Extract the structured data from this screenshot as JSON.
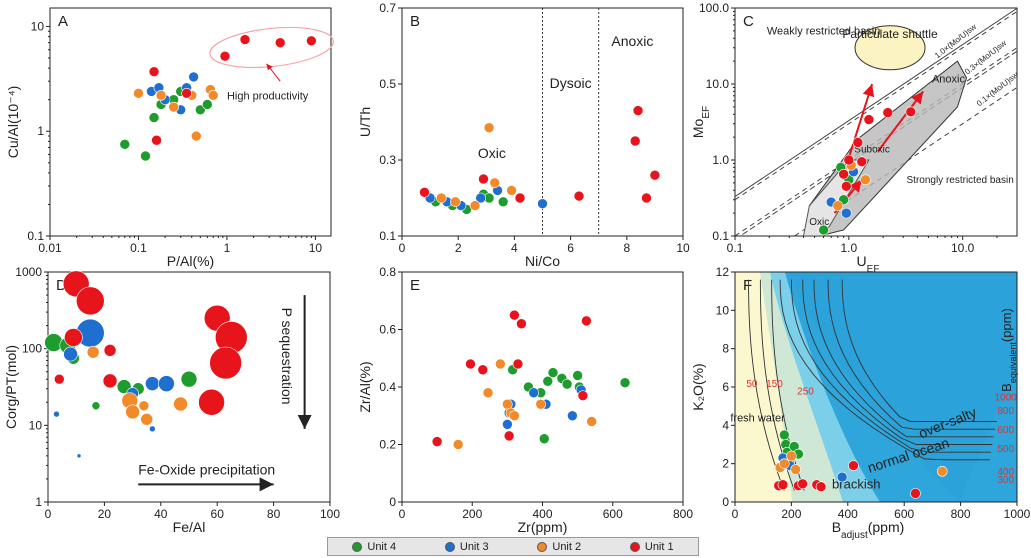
{
  "colors": {
    "unit4": "#1e9c2e",
    "unit3": "#1f6fd1",
    "unit2": "#f28a2a",
    "unit1": "#e8141c"
  },
  "legend": [
    {
      "key": "unit4",
      "label": "Unit 4"
    },
    {
      "key": "unit3",
      "label": "Unit 3"
    },
    {
      "key": "unit2",
      "label": "Unit 2"
    },
    {
      "key": "unit1",
      "label": "Unit 1"
    }
  ],
  "chart_data": [
    {
      "id": "A",
      "type": "scatter",
      "panel_label": "A",
      "xscale": "log",
      "yscale": "log",
      "xlabel": "P/Al(%)",
      "ylabel": "Cu/Al(10⁻⁴)",
      "xlim": [
        0.01,
        15
      ],
      "ylim": [
        0.1,
        15
      ],
      "xticks": [
        0.01,
        0.1,
        1,
        10
      ],
      "xtick_labels": [
        "0.01",
        "0.1",
        "1",
        "10"
      ],
      "yticks": [
        0.1,
        1,
        10
      ],
      "ytick_labels": [
        "0.1",
        "1",
        "10"
      ],
      "annotations": [
        "High productivity"
      ],
      "points": [
        {
          "x": 0.07,
          "y": 0.75,
          "unit": "unit4"
        },
        {
          "x": 0.12,
          "y": 0.58,
          "unit": "unit4"
        },
        {
          "x": 0.15,
          "y": 1.35,
          "unit": "unit4"
        },
        {
          "x": 0.18,
          "y": 1.8,
          "unit": "unit4"
        },
        {
          "x": 0.25,
          "y": 2.0,
          "unit": "unit4"
        },
        {
          "x": 0.3,
          "y": 2.4,
          "unit": "unit4"
        },
        {
          "x": 0.5,
          "y": 1.6,
          "unit": "unit4"
        },
        {
          "x": 0.6,
          "y": 1.8,
          "unit": "unit4"
        },
        {
          "x": 0.14,
          "y": 2.4,
          "unit": "unit3"
        },
        {
          "x": 0.2,
          "y": 2.0,
          "unit": "unit3"
        },
        {
          "x": 0.3,
          "y": 1.6,
          "unit": "unit3"
        },
        {
          "x": 0.35,
          "y": 2.6,
          "unit": "unit3"
        },
        {
          "x": 0.42,
          "y": 3.3,
          "unit": "unit3"
        },
        {
          "x": 0.17,
          "y": 2.6,
          "unit": "unit3"
        },
        {
          "x": 0.1,
          "y": 2.3,
          "unit": "unit2"
        },
        {
          "x": 0.18,
          "y": 2.2,
          "unit": "unit2"
        },
        {
          "x": 0.25,
          "y": 1.7,
          "unit": "unit2"
        },
        {
          "x": 0.4,
          "y": 2.2,
          "unit": "unit2"
        },
        {
          "x": 0.65,
          "y": 2.5,
          "unit": "unit2"
        },
        {
          "x": 0.7,
          "y": 2.2,
          "unit": "unit2"
        },
        {
          "x": 0.45,
          "y": 0.9,
          "unit": "unit2"
        },
        {
          "x": 0.15,
          "y": 3.7,
          "unit": "unit1"
        },
        {
          "x": 0.16,
          "y": 0.82,
          "unit": "unit1"
        },
        {
          "x": 0.35,
          "y": 2.3,
          "unit": "unit1"
        },
        {
          "x": 0.95,
          "y": 5.2,
          "unit": "unit1"
        },
        {
          "x": 1.6,
          "y": 7.5,
          "unit": "unit1"
        },
        {
          "x": 4.0,
          "y": 7.0,
          "unit": "unit1"
        },
        {
          "x": 9.0,
          "y": 7.3,
          "unit": "unit1"
        }
      ]
    },
    {
      "id": "B",
      "type": "scatter",
      "panel_label": "B",
      "xlabel": "Ni/Co",
      "ylabel": "U/Th",
      "xlim": [
        0,
        10
      ],
      "ylim": [
        0.1,
        0.7
      ],
      "xticks": [
        0,
        2,
        4,
        6,
        8,
        10
      ],
      "xtick_labels": [
        "0",
        "2",
        "4",
        "6",
        "8",
        "10"
      ],
      "yticks": [
        0.1,
        0.3,
        0.5,
        0.7
      ],
      "ytick_labels": [
        "0.1",
        "0.3",
        "0.5",
        "0.7"
      ],
      "vlines": [
        5,
        7
      ],
      "zones": [
        "Oxic",
        "Dysoic",
        "Anoxic"
      ],
      "points": [
        {
          "x": 1.2,
          "y": 0.19,
          "unit": "unit4"
        },
        {
          "x": 1.8,
          "y": 0.18,
          "unit": "unit4"
        },
        {
          "x": 2.3,
          "y": 0.17,
          "unit": "unit4"
        },
        {
          "x": 2.9,
          "y": 0.21,
          "unit": "unit4"
        },
        {
          "x": 3.1,
          "y": 0.2,
          "unit": "unit4"
        },
        {
          "x": 3.6,
          "y": 0.19,
          "unit": "unit4"
        },
        {
          "x": 1.0,
          "y": 0.2,
          "unit": "unit3"
        },
        {
          "x": 1.6,
          "y": 0.19,
          "unit": "unit3"
        },
        {
          "x": 2.1,
          "y": 0.18,
          "unit": "unit3"
        },
        {
          "x": 2.8,
          "y": 0.2,
          "unit": "unit3"
        },
        {
          "x": 3.4,
          "y": 0.22,
          "unit": "unit3"
        },
        {
          "x": 5.0,
          "y": 0.185,
          "unit": "unit3"
        },
        {
          "x": 1.4,
          "y": 0.2,
          "unit": "unit2"
        },
        {
          "x": 1.9,
          "y": 0.19,
          "unit": "unit2"
        },
        {
          "x": 2.6,
          "y": 0.18,
          "unit": "unit2"
        },
        {
          "x": 3.1,
          "y": 0.385,
          "unit": "unit2"
        },
        {
          "x": 3.3,
          "y": 0.24,
          "unit": "unit2"
        },
        {
          "x": 3.9,
          "y": 0.22,
          "unit": "unit2"
        },
        {
          "x": 0.8,
          "y": 0.215,
          "unit": "unit1"
        },
        {
          "x": 2.9,
          "y": 0.25,
          "unit": "unit1"
        },
        {
          "x": 4.2,
          "y": 0.2,
          "unit": "unit1"
        },
        {
          "x": 6.3,
          "y": 0.205,
          "unit": "unit1"
        },
        {
          "x": 8.3,
          "y": 0.35,
          "unit": "unit1"
        },
        {
          "x": 8.4,
          "y": 0.43,
          "unit": "unit1"
        },
        {
          "x": 8.7,
          "y": 0.2,
          "unit": "unit1"
        },
        {
          "x": 9.0,
          "y": 0.26,
          "unit": "unit1"
        }
      ]
    },
    {
      "id": "C",
      "type": "scatter",
      "panel_label": "C",
      "xscale": "log",
      "yscale": "log",
      "xlabel": "U",
      "xlabel_sub": "EF",
      "ylabel": "Mo",
      "ylabel_sub": "EF",
      "xlim": [
        0.1,
        30
      ],
      "ylim": [
        0.1,
        100
      ],
      "xticks": [
        0.1,
        1,
        10
      ],
      "xtick_labels": [
        "0.1",
        "1.0",
        "10.0"
      ],
      "yticks": [
        0.1,
        1,
        10,
        100
      ],
      "ytick_labels": [
        "0.1",
        "1.0",
        "10.0",
        "100.0"
      ],
      "ref_lines": [
        {
          "factor": 3,
          "label": "1.0×(Mo/U)sw"
        },
        {
          "factor": 1,
          "label": "0.3×(Mo/U)sw"
        },
        {
          "factor": 0.3,
          "label": "0.1×(Mo/U)sw"
        }
      ],
      "region_labels": [
        "Weakly restricted basin",
        "Particulate shuttle",
        "Anoxic",
        "Suboxic",
        "Oxic",
        "Strongly restricted basin"
      ],
      "points": [
        {
          "x": 0.6,
          "y": 0.12,
          "unit": "unit4"
        },
        {
          "x": 0.85,
          "y": 0.8,
          "unit": "unit4"
        },
        {
          "x": 0.9,
          "y": 0.3,
          "unit": "unit4"
        },
        {
          "x": 1.0,
          "y": 0.55,
          "unit": "unit4"
        },
        {
          "x": 0.7,
          "y": 0.28,
          "unit": "unit3"
        },
        {
          "x": 0.95,
          "y": 0.2,
          "unit": "unit3"
        },
        {
          "x": 1.1,
          "y": 0.7,
          "unit": "unit3"
        },
        {
          "x": 0.8,
          "y": 0.25,
          "unit": "unit2"
        },
        {
          "x": 1.05,
          "y": 0.85,
          "unit": "unit2"
        },
        {
          "x": 1.4,
          "y": 0.55,
          "unit": "unit2"
        },
        {
          "x": 0.9,
          "y": 0.65,
          "unit": "unit1"
        },
        {
          "x": 1.0,
          "y": 1.0,
          "unit": "unit1"
        },
        {
          "x": 1.3,
          "y": 0.95,
          "unit": "unit1"
        },
        {
          "x": 1.5,
          "y": 3.4,
          "unit": "unit1"
        },
        {
          "x": 2.2,
          "y": 4.2,
          "unit": "unit1"
        },
        {
          "x": 3.5,
          "y": 4.3,
          "unit": "unit1"
        },
        {
          "x": 0.95,
          "y": 0.45,
          "unit": "unit1"
        },
        {
          "x": 1.2,
          "y": 1.7,
          "unit": "unit1"
        }
      ]
    },
    {
      "id": "D",
      "type": "scatter",
      "panel_label": "D",
      "yscale": "log",
      "xlabel": "Fe/Al",
      "ylabel": "Corg/PT(mol)",
      "xlim": [
        0,
        100
      ],
      "ylim": [
        1,
        1000
      ],
      "xticks": [
        0,
        20,
        40,
        60,
        80,
        100
      ],
      "xtick_labels": [
        "0",
        "20",
        "40",
        "60",
        "80",
        "100"
      ],
      "yticks": [
        1,
        10,
        100,
        1000
      ],
      "ytick_labels": [
        "1",
        "10",
        "100",
        "1000"
      ],
      "annotations": [
        "P sequestration",
        "Fe-Oxide precipitation"
      ],
      "points": [
        {
          "x": 2,
          "y": 120,
          "unit": "unit4",
          "s": 9
        },
        {
          "x": 7,
          "y": 110,
          "unit": "unit4",
          "s": 8
        },
        {
          "x": 9,
          "y": 75,
          "unit": "unit4",
          "s": 6
        },
        {
          "x": 17,
          "y": 18,
          "unit": "unit4",
          "s": 4
        },
        {
          "x": 27,
          "y": 32,
          "unit": "unit4",
          "s": 7
        },
        {
          "x": 32,
          "y": 30,
          "unit": "unit4",
          "s": 6
        },
        {
          "x": 50,
          "y": 40,
          "unit": "unit4",
          "s": 8
        },
        {
          "x": 3,
          "y": 14,
          "unit": "unit3",
          "s": 3
        },
        {
          "x": 8,
          "y": 85,
          "unit": "unit3",
          "s": 7
        },
        {
          "x": 11,
          "y": 4,
          "unit": "unit3",
          "s": 2
        },
        {
          "x": 15,
          "y": 160,
          "unit": "unit3",
          "s": 14
        },
        {
          "x": 30,
          "y": 26,
          "unit": "unit3",
          "s": 6
        },
        {
          "x": 37,
          "y": 35,
          "unit": "unit3",
          "s": 7
        },
        {
          "x": 42,
          "y": 35,
          "unit": "unit3",
          "s": 8
        },
        {
          "x": 37,
          "y": 9,
          "unit": "unit3",
          "s": 3
        },
        {
          "x": 16,
          "y": 90,
          "unit": "unit2",
          "s": 6
        },
        {
          "x": 29,
          "y": 21,
          "unit": "unit2",
          "s": 8
        },
        {
          "x": 30,
          "y": 15,
          "unit": "unit2",
          "s": 7
        },
        {
          "x": 34,
          "y": 18,
          "unit": "unit2",
          "s": 5
        },
        {
          "x": 35,
          "y": 12,
          "unit": "unit2",
          "s": 6
        },
        {
          "x": 47,
          "y": 19,
          "unit": "unit2",
          "s": 7
        },
        {
          "x": 4,
          "y": 40,
          "unit": "unit1",
          "s": 5
        },
        {
          "x": 9,
          "y": 140,
          "unit": "unit1",
          "s": 9
        },
        {
          "x": 10,
          "y": 700,
          "unit": "unit1",
          "s": 13
        },
        {
          "x": 15,
          "y": 420,
          "unit": "unit1",
          "s": 14
        },
        {
          "x": 22,
          "y": 95,
          "unit": "unit1",
          "s": 6
        },
        {
          "x": 22,
          "y": 38,
          "unit": "unit1",
          "s": 7
        },
        {
          "x": 58,
          "y": 20,
          "unit": "unit1",
          "s": 13
        },
        {
          "x": 60,
          "y": 250,
          "unit": "unit1",
          "s": 13
        },
        {
          "x": 65,
          "y": 140,
          "unit": "unit1",
          "s": 16
        },
        {
          "x": 63,
          "y": 65,
          "unit": "unit1",
          "s": 16
        }
      ]
    },
    {
      "id": "E",
      "type": "scatter",
      "panel_label": "E",
      "xlabel": "Zr(ppm)",
      "ylabel": "Zr/Al(%)",
      "xlim": [
        0,
        800
      ],
      "ylim": [
        0,
        0.8
      ],
      "xticks": [
        0,
        200,
        400,
        600,
        800
      ],
      "xtick_labels": [
        "0",
        "200",
        "400",
        "600",
        "800"
      ],
      "yticks": [
        0,
        0.2,
        0.4,
        0.6,
        0.8
      ],
      "ytick_labels": [
        "0",
        "0.2",
        "0.4",
        "0.6",
        "0.8"
      ],
      "points": [
        {
          "x": 315,
          "y": 0.46,
          "unit": "unit4"
        },
        {
          "x": 360,
          "y": 0.4,
          "unit": "unit4"
        },
        {
          "x": 395,
          "y": 0.38,
          "unit": "unit4"
        },
        {
          "x": 415,
          "y": 0.42,
          "unit": "unit4"
        },
        {
          "x": 430,
          "y": 0.45,
          "unit": "unit4"
        },
        {
          "x": 455,
          "y": 0.43,
          "unit": "unit4"
        },
        {
          "x": 470,
          "y": 0.41,
          "unit": "unit4"
        },
        {
          "x": 500,
          "y": 0.44,
          "unit": "unit4"
        },
        {
          "x": 505,
          "y": 0.4,
          "unit": "unit4"
        },
        {
          "x": 635,
          "y": 0.415,
          "unit": "unit4"
        },
        {
          "x": 405,
          "y": 0.22,
          "unit": "unit4"
        },
        {
          "x": 300,
          "y": 0.27,
          "unit": "unit3"
        },
        {
          "x": 305,
          "y": 0.31,
          "unit": "unit3"
        },
        {
          "x": 310,
          "y": 0.34,
          "unit": "unit3"
        },
        {
          "x": 375,
          "y": 0.38,
          "unit": "unit3"
        },
        {
          "x": 410,
          "y": 0.34,
          "unit": "unit3"
        },
        {
          "x": 485,
          "y": 0.3,
          "unit": "unit3"
        },
        {
          "x": 510,
          "y": 0.39,
          "unit": "unit3"
        },
        {
          "x": 160,
          "y": 0.2,
          "unit": "unit2"
        },
        {
          "x": 245,
          "y": 0.38,
          "unit": "unit2"
        },
        {
          "x": 280,
          "y": 0.48,
          "unit": "unit2"
        },
        {
          "x": 300,
          "y": 0.34,
          "unit": "unit2"
        },
        {
          "x": 310,
          "y": 0.31,
          "unit": "unit2"
        },
        {
          "x": 320,
          "y": 0.3,
          "unit": "unit2"
        },
        {
          "x": 395,
          "y": 0.34,
          "unit": "unit2"
        },
        {
          "x": 540,
          "y": 0.28,
          "unit": "unit2"
        },
        {
          "x": 100,
          "y": 0.21,
          "unit": "unit1"
        },
        {
          "x": 195,
          "y": 0.48,
          "unit": "unit1"
        },
        {
          "x": 230,
          "y": 0.46,
          "unit": "unit1"
        },
        {
          "x": 305,
          "y": 0.23,
          "unit": "unit1"
        },
        {
          "x": 320,
          "y": 0.65,
          "unit": "unit1"
        },
        {
          "x": 340,
          "y": 0.62,
          "unit": "unit1"
        },
        {
          "x": 330,
          "y": 0.48,
          "unit": "unit1"
        },
        {
          "x": 525,
          "y": 0.63,
          "unit": "unit1"
        },
        {
          "x": 515,
          "y": 0.37,
          "unit": "unit1"
        }
      ]
    },
    {
      "id": "F",
      "type": "scatter",
      "panel_label": "F",
      "xlabel": "B",
      "xlabel_sub": "adjust",
      "xlabel_suffix": "(ppm)",
      "ylabel": "K₂O(%)",
      "right_label": "B",
      "right_label_sub": "equivalent",
      "right_label_suffix": "(ppm)",
      "xlim": [
        0,
        1000
      ],
      "ylim": [
        0,
        12
      ],
      "xticks": [
        0,
        200,
        400,
        600,
        800,
        1000
      ],
      "xtick_labels": [
        "0",
        "200",
        "400",
        "600",
        "800",
        "1000"
      ],
      "yticks": [
        0,
        2,
        4,
        6,
        8,
        10,
        12
      ],
      "ytick_labels": [
        "0",
        "2",
        "4",
        "6",
        "8",
        "10",
        "12"
      ],
      "zone_labels": [
        "fresh water",
        "brackish",
        "normal ocean",
        "over-salty"
      ],
      "iso_labels": [
        "50",
        "150",
        "250",
        "300",
        "400",
        "500",
        "600",
        "800",
        "1000"
      ],
      "points": [
        {
          "x": 175,
          "y": 3.5,
          "unit": "unit4"
        },
        {
          "x": 180,
          "y": 3.0,
          "unit": "unit4"
        },
        {
          "x": 185,
          "y": 2.6,
          "unit": "unit4"
        },
        {
          "x": 195,
          "y": 2.2,
          "unit": "unit4"
        },
        {
          "x": 210,
          "y": 2.9,
          "unit": "unit4"
        },
        {
          "x": 225,
          "y": 2.5,
          "unit": "unit4"
        },
        {
          "x": 195,
          "y": 1.9,
          "unit": "unit3"
        },
        {
          "x": 170,
          "y": 2.3,
          "unit": "unit3"
        },
        {
          "x": 380,
          "y": 1.3,
          "unit": "unit3"
        },
        {
          "x": 160,
          "y": 1.8,
          "unit": "unit2"
        },
        {
          "x": 175,
          "y": 2.0,
          "unit": "unit2"
        },
        {
          "x": 200,
          "y": 2.4,
          "unit": "unit2"
        },
        {
          "x": 215,
          "y": 1.7,
          "unit": "unit2"
        },
        {
          "x": 735,
          "y": 1.6,
          "unit": "unit2"
        },
        {
          "x": 155,
          "y": 0.85,
          "unit": "unit1"
        },
        {
          "x": 170,
          "y": 0.9,
          "unit": "unit1"
        },
        {
          "x": 225,
          "y": 0.85,
          "unit": "unit1"
        },
        {
          "x": 240,
          "y": 0.95,
          "unit": "unit1"
        },
        {
          "x": 290,
          "y": 0.9,
          "unit": "unit1"
        },
        {
          "x": 305,
          "y": 0.8,
          "unit": "unit1"
        },
        {
          "x": 420,
          "y": 1.9,
          "unit": "unit1"
        },
        {
          "x": 640,
          "y": 0.45,
          "unit": "unit1"
        }
      ]
    }
  ]
}
